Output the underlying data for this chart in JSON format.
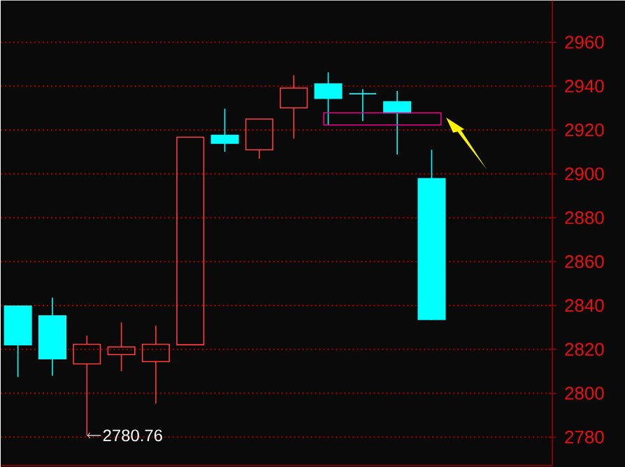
{
  "chart_data": {
    "type": "candlestick",
    "categories": [
      null,
      null,
      null,
      null,
      null,
      null,
      null,
      null,
      null,
      null,
      null,
      null,
      null,
      null,
      null,
      null
    ],
    "ohlc": [
      [
        2839.7,
        2839.7,
        2807.4,
        2822.1
      ],
      [
        2835.3,
        2843.6,
        2808.0,
        2815.7
      ],
      [
        2813.4,
        2826.3,
        2780.76,
        2822.3
      ],
      [
        2817.6,
        2832.3,
        2810.0,
        2821.1
      ],
      [
        2814.4,
        2830.8,
        2795.3,
        2822.3
      ],
      [
        2822.1,
        2916.7,
        2822.1,
        2916.7
      ],
      [
        2917.6,
        2929.7,
        2910.1,
        2913.9
      ],
      [
        2911.0,
        2925.0,
        2906.9,
        2925.0
      ],
      [
        2930.1,
        2945.0,
        2916.1,
        2939.1
      ],
      [
        2941.0,
        2946.3,
        2922.5,
        2934.4
      ],
      [
        2936.5,
        2938.6,
        2924.1,
        2936.5
      ],
      [
        2932.9,
        2937.8,
        2908.8,
        2927.8
      ],
      [
        2897.8,
        2911.0,
        2833.3,
        2833.6
      ],
      null,
      null,
      null
    ],
    "colors": [
      "#00ffff",
      "#00ffff",
      "#ff3c3c",
      "#ff3c3c",
      "#ff3c3c",
      "#ff3c3c",
      "#00ffff",
      "#ff3c3c",
      "#ff3c3c",
      "#00ffff",
      "#00ffff",
      "#00ffff",
      "#00ffff",
      null,
      null,
      null
    ],
    "ylim": [
      2767,
      2979
    ],
    "yticks": [
      2780,
      2800,
      2820,
      2840,
      2860,
      2880,
      2900,
      2920,
      2940,
      2960
    ],
    "grid": "y",
    "tick_labels": "y",
    "annotations": [
      "2780.76"
    ]
  }
}
